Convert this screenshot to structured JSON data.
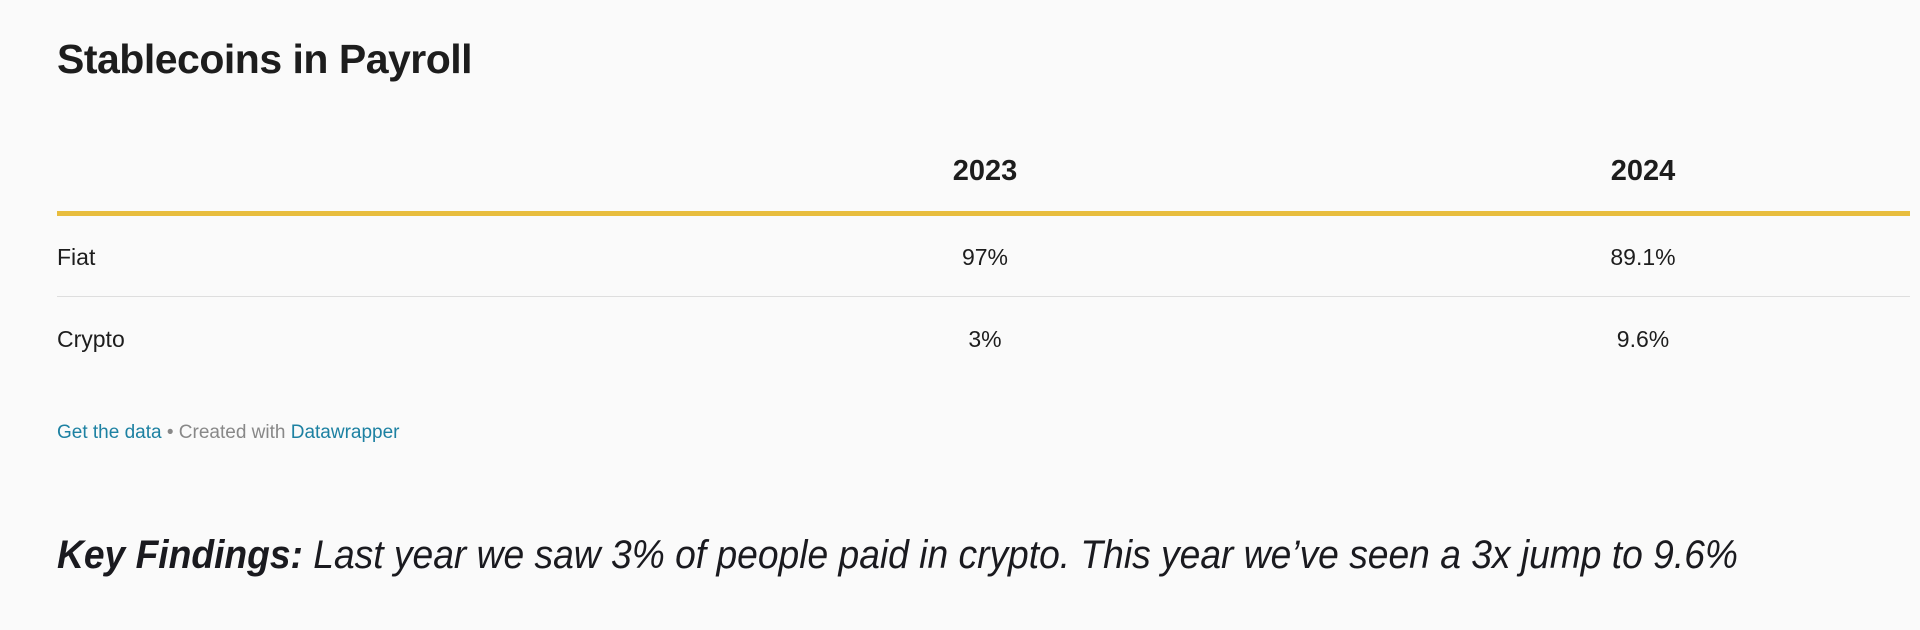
{
  "title": "Stablecoins in Payroll",
  "table": {
    "columns": [
      "",
      "2023",
      "2024"
    ],
    "rows": [
      {
        "label": "Fiat",
        "values": [
          "97%",
          "89.1%"
        ]
      },
      {
        "label": "Crypto",
        "values": [
          "3%",
          "9.6%"
        ]
      }
    ],
    "header_rule_color": "#e8bd3e"
  },
  "footer": {
    "get_data": "Get the data",
    "separator": " • Created with ",
    "datawrapper": "Datawrapper",
    "link_color": "#1d81a2"
  },
  "key_findings": {
    "label": "Key Findings:",
    "text": " Last year we saw 3% of people paid in crypto. This year we’ve seen a 3x jump to 9.6%"
  }
}
